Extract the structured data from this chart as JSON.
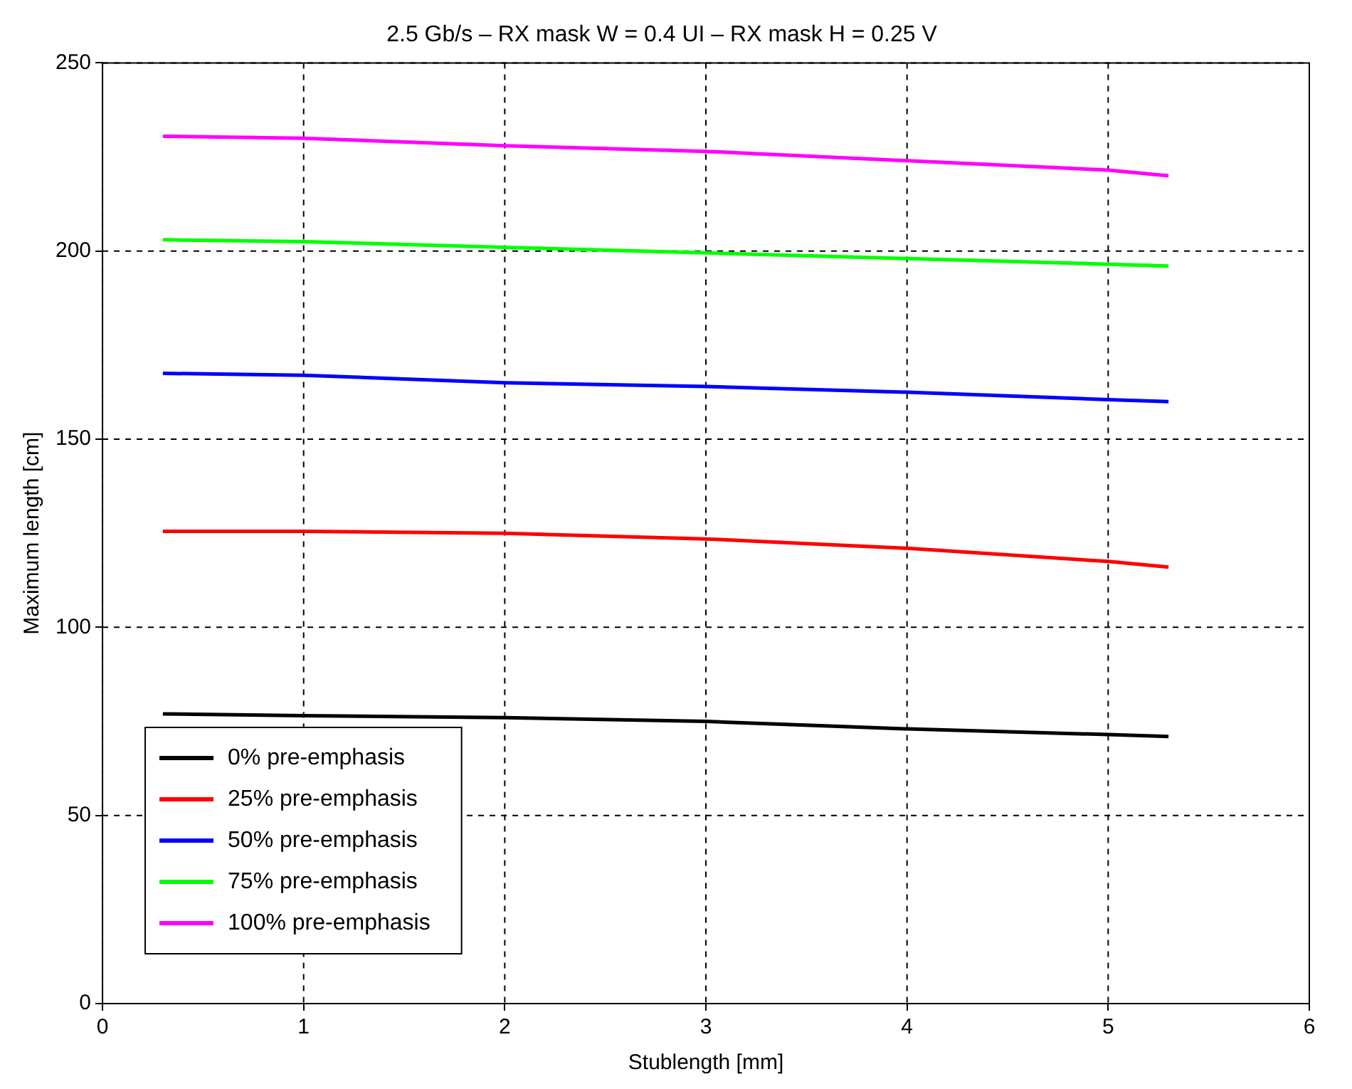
{
  "chart_data": {
    "type": "line",
    "title": "2.5 Gb/s – RX mask W = 0.4 UI – RX mask H = 0.25 V",
    "xlabel": "Stublength [mm]",
    "ylabel": "Maximum length [cm]",
    "x": [
      0.3,
      1,
      2,
      3,
      4,
      5,
      5.3
    ],
    "series": [
      {
        "name": "0% pre-emphasis",
        "color": "#000000",
        "values": [
          77,
          76.5,
          76,
          75,
          73,
          71.5,
          71
        ]
      },
      {
        "name": "25% pre-emphasis",
        "color": "#ff0000",
        "values": [
          125.5,
          125.5,
          125,
          123.5,
          121,
          117.5,
          116
        ]
      },
      {
        "name": "50% pre-emphasis",
        "color": "#0000ff",
        "values": [
          167.5,
          167,
          165,
          164,
          162.5,
          160.5,
          160
        ]
      },
      {
        "name": "75% pre-emphasis",
        "color": "#00ff00",
        "values": [
          203,
          202.5,
          201,
          199.5,
          198,
          196.5,
          196
        ]
      },
      {
        "name": "100% pre-emphasis",
        "color": "#ff00ff",
        "values": [
          230.5,
          230,
          228,
          226.5,
          224,
          221.5,
          220
        ]
      }
    ],
    "xlim": [
      0,
      6
    ],
    "xticks": [
      0,
      1,
      2,
      3,
      4,
      5,
      6
    ],
    "ylim": [
      0,
      250
    ],
    "yticks": [
      0,
      50,
      100,
      150,
      200,
      250
    ],
    "grid": true,
    "legend": "bottom left",
    "marker": "none",
    "line_style": "solid"
  }
}
